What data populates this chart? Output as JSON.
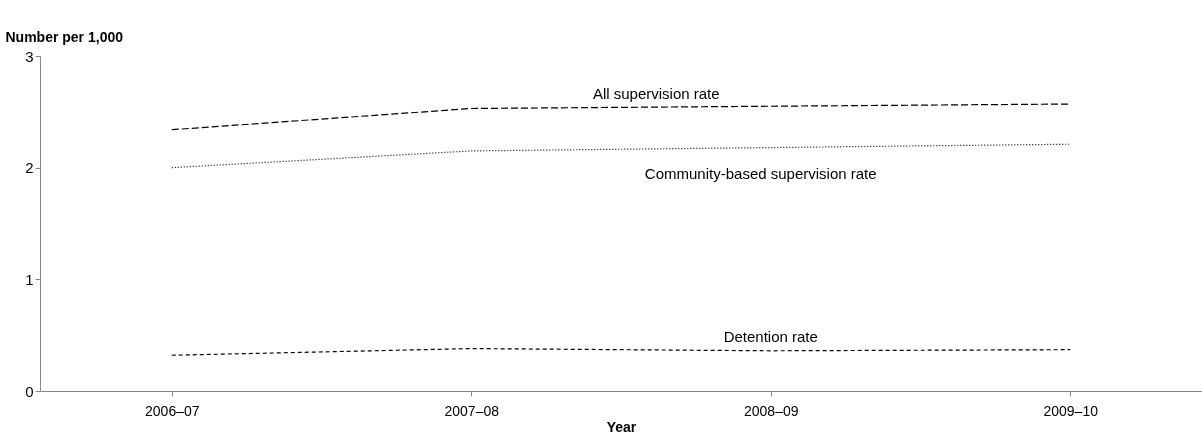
{
  "chart_data": {
    "type": "line",
    "xlabel": "Year",
    "ylabel": "Number per 1,000",
    "categories": [
      "2006–07",
      "2007–08",
      "2008–09",
      "2009–10"
    ],
    "series": [
      {
        "name": "All supervision rate",
        "color": "#000000",
        "line_style": "dashed",
        "values": [
          2.34,
          2.53,
          2.55,
          2.57
        ]
      },
      {
        "name": "Community-based supervision rate",
        "color": "#000000",
        "line_style": "dotted",
        "values": [
          2.0,
          2.15,
          2.18,
          2.21
        ]
      },
      {
        "name": "Detention rate",
        "color": "#000000",
        "line_style": "dashed",
        "values": [
          0.32,
          0.38,
          0.36,
          0.37
        ]
      }
    ],
    "ylim": [
      0,
      3
    ],
    "yticks": [
      0,
      1,
      2,
      3
    ],
    "grid": false,
    "legend": false,
    "marker": "none"
  }
}
